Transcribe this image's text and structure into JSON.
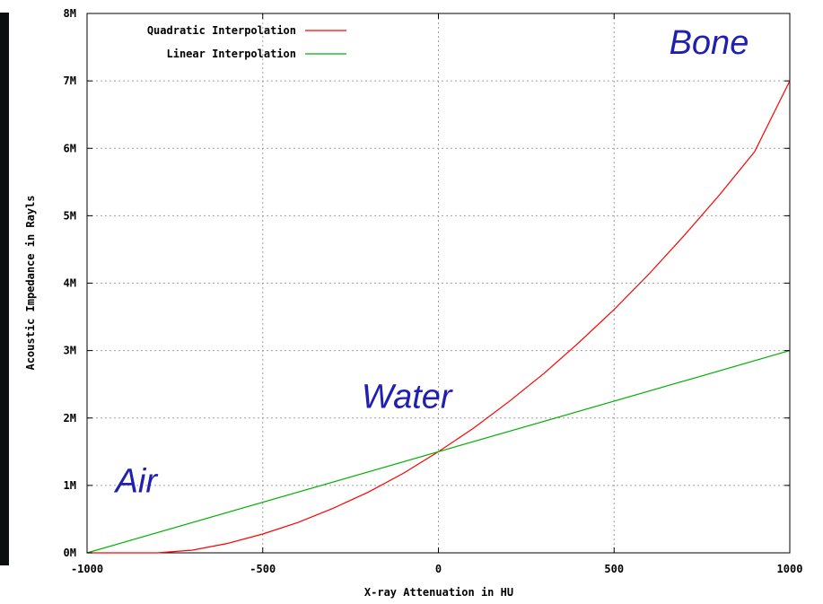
{
  "chart_data": {
    "type": "line",
    "title": "",
    "xlabel": "X-ray Attenuation in HU",
    "ylabel": "Acoustic Impedance in Rayls",
    "xlim": [
      -1000,
      1000
    ],
    "ylim": [
      0,
      8
    ],
    "x_ticks": [
      "-1000",
      "-500",
      "0",
      "500",
      "1000"
    ],
    "x_tick_values": [
      -1000,
      -500,
      0,
      500,
      1000
    ],
    "y_ticks": [
      "0M",
      "1M",
      "2M",
      "3M",
      "4M",
      "5M",
      "6M",
      "7M",
      "8M"
    ],
    "y_tick_values": [
      0,
      1,
      2,
      3,
      4,
      5,
      6,
      7,
      8
    ],
    "grid": true,
    "legend_position": "top-left",
    "series": [
      {
        "name": "Quadratic Interpolation",
        "color": "#ff0000",
        "x": [
          -1000,
          -900,
          -800,
          -700,
          -600,
          -500,
          -400,
          -300,
          -200,
          -100,
          0,
          100,
          200,
          300,
          400,
          500,
          600,
          700,
          800,
          900,
          1000
        ],
        "y": [
          0,
          0,
          0,
          0.04,
          0.14,
          0.28,
          0.45,
          0.66,
          0.9,
          1.18,
          1.5,
          1.85,
          2.24,
          2.66,
          3.12,
          3.61,
          4.14,
          4.71,
          5.31,
          5.95,
          7.0
        ]
      },
      {
        "name": "Linear Interpolation",
        "color": "#00b000",
        "x": [
          -1000,
          0,
          1000
        ],
        "y": [
          0,
          1.5,
          3
        ]
      }
    ],
    "annotations": [
      {
        "text": "Bone",
        "x": 770,
        "y": 7.4
      },
      {
        "text": "Water",
        "x": -90,
        "y": 2.15
      },
      {
        "text": "Air",
        "x": -860,
        "y": 0.9
      }
    ]
  }
}
